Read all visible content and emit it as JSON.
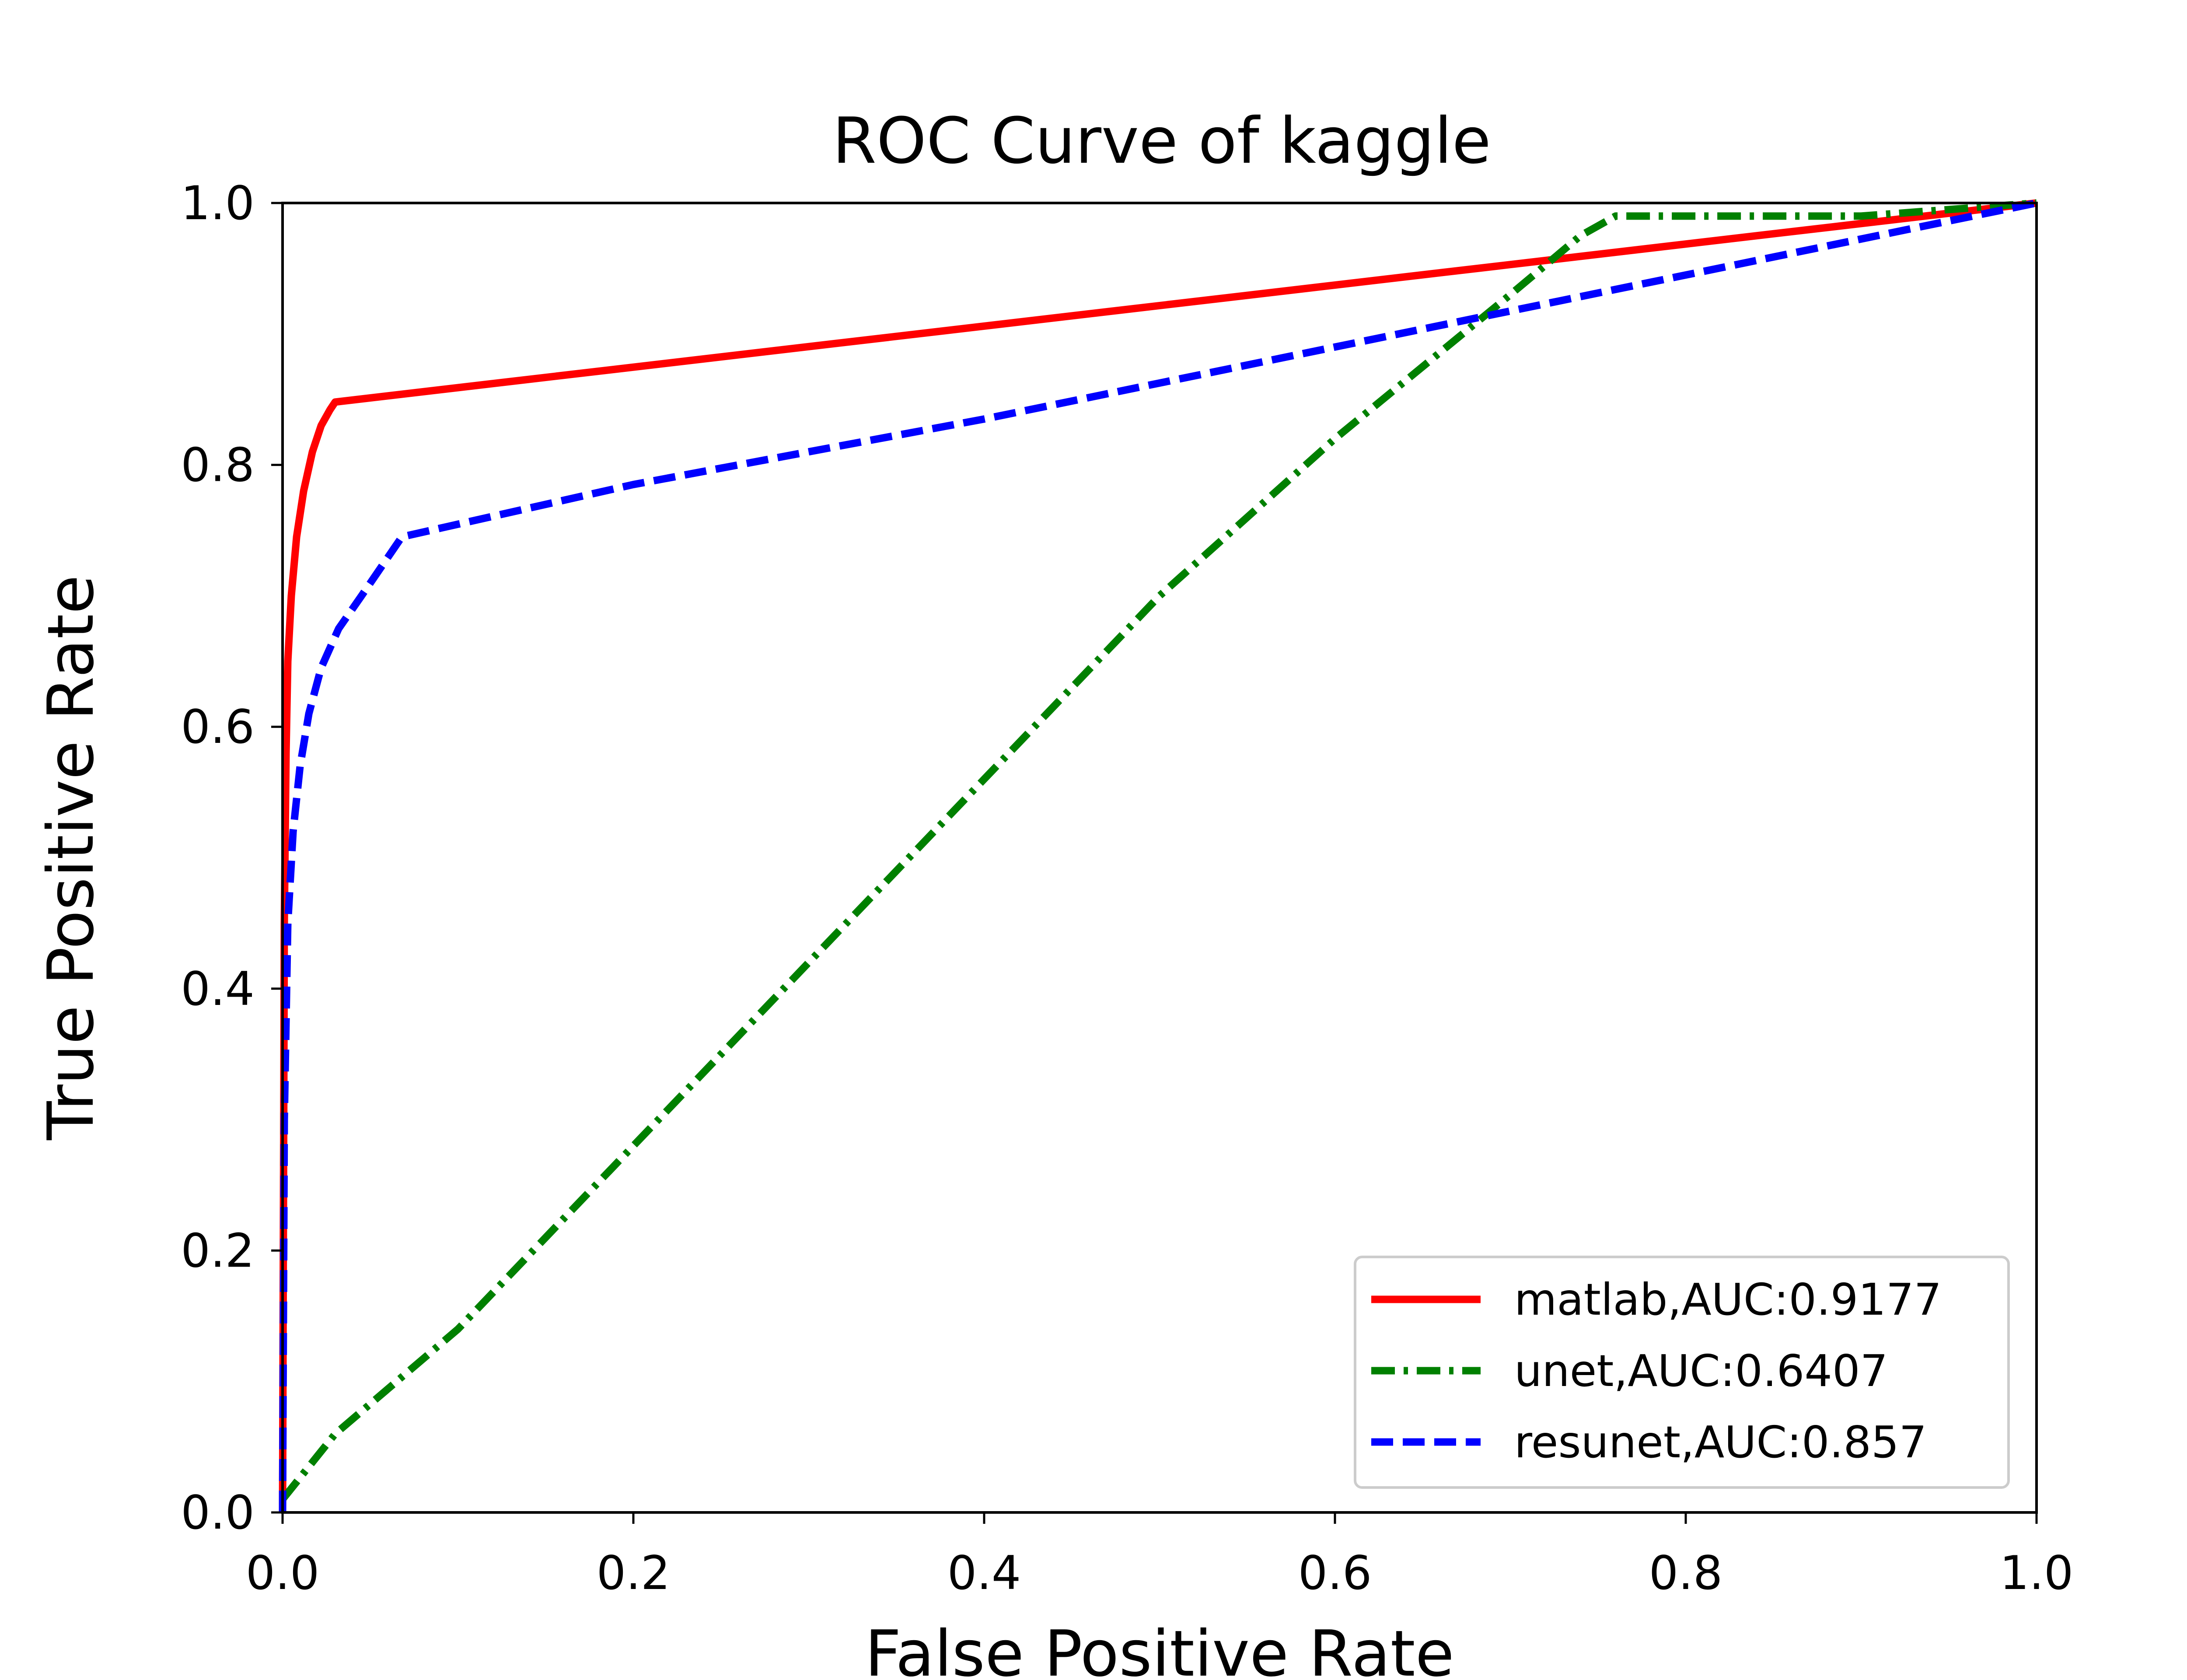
{
  "chart_data": {
    "type": "line",
    "title": "ROC Curve of kaggle",
    "xlabel": "False Positive Rate",
    "ylabel": "True Positive Rate",
    "xlim": [
      0.0,
      1.0
    ],
    "ylim": [
      0.0,
      1.0
    ],
    "xticks": [
      "0.0",
      "0.2",
      "0.4",
      "0.6",
      "0.8",
      "1.0"
    ],
    "yticks": [
      "0.0",
      "0.2",
      "0.4",
      "0.6",
      "0.8",
      "1.0"
    ],
    "grid": false,
    "legend_position": "lower-right",
    "series": [
      {
        "name": "matlab,AUC:0.9177",
        "color": "#ff0000",
        "style": "solid",
        "x": [
          0.0,
          0.001,
          0.002,
          0.003,
          0.005,
          0.008,
          0.012,
          0.017,
          0.022,
          0.027,
          0.03,
          1.0
        ],
        "y": [
          0.0,
          0.45,
          0.58,
          0.65,
          0.7,
          0.745,
          0.78,
          0.81,
          0.83,
          0.842,
          0.848,
          1.0
        ]
      },
      {
        "name": "unet,AUC:0.6407",
        "color": "#008000",
        "style": "dashdot",
        "x": [
          0.0,
          0.03,
          0.1,
          0.2,
          0.3,
          0.4,
          0.5,
          0.6,
          0.7,
          0.74,
          0.76,
          0.8,
          0.9,
          1.0
        ],
        "y": [
          0.01,
          0.06,
          0.14,
          0.28,
          0.42,
          0.56,
          0.7,
          0.82,
          0.93,
          0.975,
          0.99,
          0.99,
          0.99,
          1.0
        ]
      },
      {
        "name": "resunet,AUC:0.857",
        "color": "#0000ff",
        "style": "dashed",
        "x": [
          0.0,
          0.001,
          0.003,
          0.006,
          0.01,
          0.015,
          0.022,
          0.032,
          0.045,
          0.068,
          0.2,
          0.4,
          0.6,
          0.8,
          1.0
        ],
        "y": [
          0.0,
          0.3,
          0.45,
          0.52,
          0.57,
          0.61,
          0.645,
          0.675,
          0.7,
          0.745,
          0.785,
          0.835,
          0.89,
          0.945,
          1.0
        ]
      }
    ]
  }
}
